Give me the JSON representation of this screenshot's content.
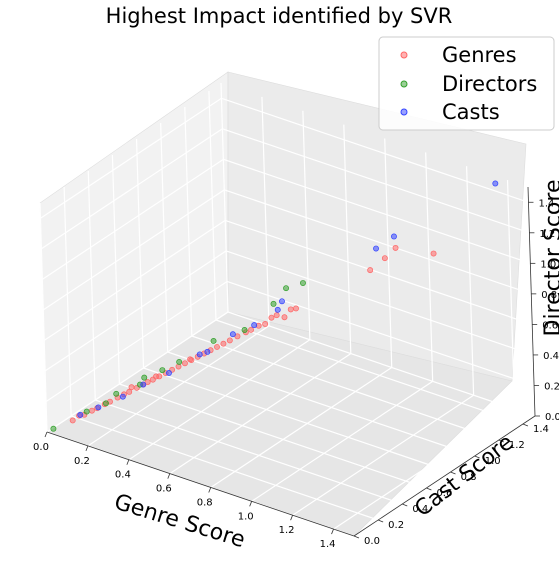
{
  "chart_data": {
    "type": "scatter",
    "projection": "3d",
    "title": "Highest Impact identified by SVR",
    "xlabel": "Genre Score",
    "ylabel": "Cast Score",
    "zlabel": "Director Score",
    "xlim": [
      0.0,
      1.5
    ],
    "ylim": [
      0.0,
      1.5
    ],
    "zlim": [
      0.0,
      1.5
    ],
    "x_ticks": [
      "0.0",
      "0.2",
      "0.4",
      "0.6",
      "0.8",
      "1.0",
      "1.2",
      "1.4"
    ],
    "y_ticks": [
      "0.0",
      "0.2",
      "0.4",
      "0.6",
      "0.8",
      "1.0",
      "1.2",
      "1.4"
    ],
    "z_ticks": [
      "0.0",
      "0.2",
      "0.4",
      "0.6",
      "0.8",
      "1.0",
      "1.2",
      "1.4"
    ],
    "grid": true,
    "legend_position": "top-right",
    "series": [
      {
        "name": "Genres",
        "color": "#ff6666",
        "points": [
          [
            0.08,
            0.08,
            0.07
          ],
          [
            0.1,
            0.1,
            0.1
          ],
          [
            0.12,
            0.11,
            0.11
          ],
          [
            0.14,
            0.14,
            0.13
          ],
          [
            0.16,
            0.15,
            0.15
          ],
          [
            0.18,
            0.18,
            0.17
          ],
          [
            0.2,
            0.19,
            0.19
          ],
          [
            0.22,
            0.22,
            0.21
          ],
          [
            0.24,
            0.24,
            0.23
          ],
          [
            0.26,
            0.25,
            0.25
          ],
          [
            0.28,
            0.28,
            0.27
          ],
          [
            0.3,
            0.3,
            0.29
          ],
          [
            0.31,
            0.32,
            0.3
          ],
          [
            0.33,
            0.33,
            0.32
          ],
          [
            0.35,
            0.35,
            0.34
          ],
          [
            0.37,
            0.37,
            0.36
          ],
          [
            0.39,
            0.39,
            0.38
          ],
          [
            0.41,
            0.41,
            0.4
          ],
          [
            0.43,
            0.43,
            0.42
          ],
          [
            0.45,
            0.45,
            0.44
          ],
          [
            0.47,
            0.47,
            0.46
          ],
          [
            0.49,
            0.49,
            0.48
          ],
          [
            0.51,
            0.51,
            0.5
          ],
          [
            0.53,
            0.53,
            0.52
          ],
          [
            0.55,
            0.55,
            0.54
          ],
          [
            0.57,
            0.57,
            0.56
          ],
          [
            0.59,
            0.6,
            0.58
          ],
          [
            0.62,
            0.62,
            0.61
          ],
          [
            0.64,
            0.63,
            0.63
          ],
          [
            0.66,
            0.66,
            0.65
          ],
          [
            0.68,
            0.68,
            0.66
          ],
          [
            0.7,
            0.7,
            0.7
          ],
          [
            0.72,
            0.71,
            0.72
          ],
          [
            0.74,
            0.74,
            0.7
          ],
          [
            0.76,
            0.76,
            0.75
          ],
          [
            0.78,
            0.77,
            0.76
          ],
          [
            0.45,
            0.44,
            0.45
          ],
          [
            0.34,
            0.34,
            0.34
          ],
          [
            0.26,
            0.27,
            0.27
          ],
          [
            1.0,
            1.02,
            0.98
          ],
          [
            1.05,
            1.06,
            1.06
          ],
          [
            1.08,
            1.1,
            1.12
          ],
          [
            1.2,
            1.21,
            1.08
          ]
        ]
      },
      {
        "name": "Directors",
        "color": "#33a02c",
        "points": [
          [
            0.02,
            0.02,
            0.02
          ],
          [
            0.12,
            0.13,
            0.12
          ],
          [
            0.18,
            0.19,
            0.17
          ],
          [
            0.22,
            0.21,
            0.24
          ],
          [
            0.29,
            0.29,
            0.29
          ],
          [
            0.3,
            0.31,
            0.33
          ],
          [
            0.36,
            0.36,
            0.38
          ],
          [
            0.42,
            0.4,
            0.44
          ],
          [
            0.52,
            0.52,
            0.56
          ],
          [
            0.62,
            0.61,
            0.63
          ],
          [
            0.7,
            0.72,
            0.78
          ],
          [
            0.74,
            0.76,
            0.88
          ],
          [
            0.8,
            0.8,
            0.92
          ]
        ]
      },
      {
        "name": "Casts",
        "color": "#3344ff",
        "points": [
          [
            0.1,
            0.11,
            0.1
          ],
          [
            0.16,
            0.16,
            0.15
          ],
          [
            0.24,
            0.23,
            0.22
          ],
          [
            0.3,
            0.3,
            0.29
          ],
          [
            0.38,
            0.38,
            0.36
          ],
          [
            0.48,
            0.47,
            0.48
          ],
          [
            0.5,
            0.5,
            0.49
          ],
          [
            0.58,
            0.58,
            0.6
          ],
          [
            0.65,
            0.64,
            0.66
          ],
          [
            0.72,
            0.72,
            0.75
          ],
          [
            0.73,
            0.74,
            0.8
          ],
          [
            1.02,
            1.04,
            1.12
          ],
          [
            1.08,
            1.09,
            1.2
          ],
          [
            1.4,
            1.4,
            1.53
          ]
        ]
      }
    ]
  }
}
